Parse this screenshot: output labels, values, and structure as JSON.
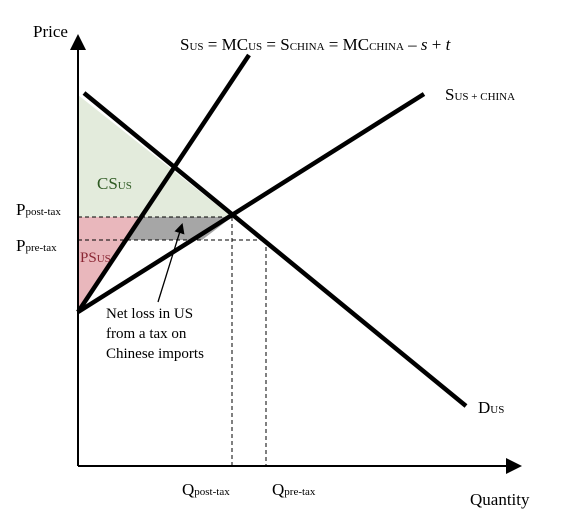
{
  "axes": {
    "y_title": "Price",
    "x_title": "Quantity"
  },
  "colors": {
    "cs_fill": "#e3ebdc",
    "ps_fill": "#e9b7bc",
    "loss_fill": "#a6a6a6",
    "cs_text": "#2e5a22",
    "ps_text": "#8a2633",
    "ink": "#000000"
  },
  "curves": {
    "supply_us": {
      "label_parts": [
        "S",
        "US",
        " = MC",
        "US",
        " = S",
        "CHINA",
        " = MC",
        "CHINA",
        " – ",
        "s",
        " + ",
        "t"
      ]
    },
    "supply_total": {
      "label_parts": [
        "S",
        "US + CHINA"
      ]
    },
    "demand_us": {
      "label_parts": [
        "D",
        "US"
      ]
    }
  },
  "areas": {
    "consumer_surplus": {
      "label_parts": [
        "CS",
        "US"
      ]
    },
    "producer_surplus": {
      "label_parts": [
        "PS",
        "US"
      ]
    }
  },
  "price_levels": {
    "post_tax": [
      "P",
      "post-tax"
    ],
    "pre_tax": [
      "P",
      "pre-tax"
    ]
  },
  "quantity_levels": {
    "post_tax": [
      "Q",
      "post-tax"
    ],
    "pre_tax": [
      "Q",
      "pre-tax"
    ]
  },
  "annotation": {
    "lines": [
      "Net loss in US",
      "from a tax on",
      "Chinese imports"
    ]
  }
}
